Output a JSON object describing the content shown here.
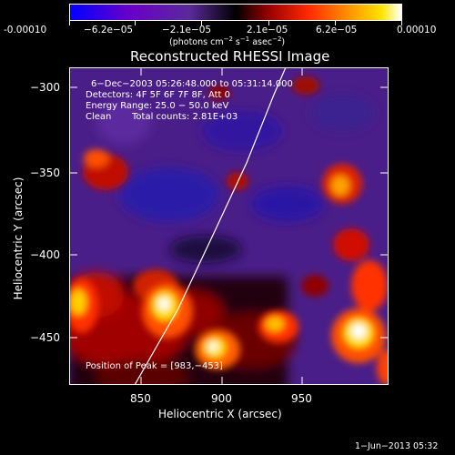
{
  "colorbar": {
    "ticks": [
      "-0.00010",
      "−6.2e−05",
      "−2.1e−05",
      "2.1e−05",
      "6.2e−05",
      "0.00010"
    ],
    "tick_values": [
      -0.0001,
      -6.2e-05,
      -2.1e-05,
      2.1e-05,
      6.2e-05,
      0.0001
    ],
    "units": {
      "main": "(photons cm",
      "sup1": "−2",
      "mid": " s",
      "sup2": "−1",
      "mid2": " asec",
      "sup3": "−2",
      "end": ")"
    },
    "colors": [
      "#0000ff",
      "#7b00b5",
      "#5a1e9a",
      "#000000",
      "#a00000",
      "#ff2000",
      "#ff8800",
      "#ffe000",
      "#ffffff"
    ]
  },
  "title": "Reconstructed RHESSI Image",
  "info": {
    "line1": "6−Dec−2003 05:26:48.000 to 05:31:14.000",
    "line2": "Detectors: 4F 5F 6F 7F 8F, Att 0",
    "line3": "Energy Range: 25.0 − 50.0 keV",
    "line4_a": "Clean",
    "line4_b": "Total counts: 2.81E+03"
  },
  "peak_text": "Position of Peak = [983,−453]",
  "x_axis": {
    "label": "Heliocentric X (arcsec)",
    "ticks": [
      "850",
      "900",
      "950"
    ],
    "tick_values": [
      850,
      900,
      950
    ],
    "range": [
      807,
      996
    ]
  },
  "y_axis": {
    "label": "Heliocentric Y (arcsec)",
    "ticks": [
      "−300",
      "−350",
      "−400",
      "−450"
    ],
    "tick_values": [
      -300,
      -350,
      -400,
      -450
    ],
    "range": [
      -480,
      -292
    ]
  },
  "timestamp": "1−Jun−2013 05:32"
}
